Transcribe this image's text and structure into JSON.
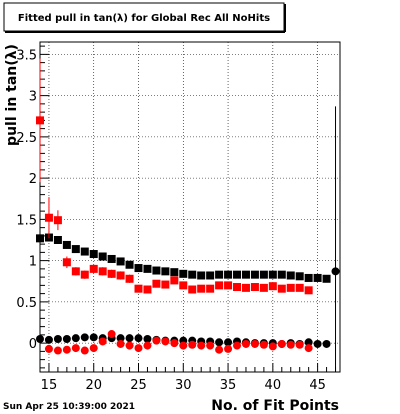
{
  "canvas": {
    "title": "Fitted pull in tan(λ) for Global Rec All NoHits",
    "timestamp": "Sun Apr 25 10:39:00 2021"
  },
  "chart_data": {
    "type": "scatter",
    "title": "Fitted pull in tan(λ) for Global Rec All NoHits",
    "xlabel": "No. of Fit Points",
    "ylabel": "pull in tan(λ)",
    "xlim": [
      14,
      47.5
    ],
    "ylim": [
      -0.35,
      3.65
    ],
    "xticks": [
      15,
      20,
      25,
      30,
      35,
      40,
      45
    ],
    "yticks": [
      0,
      0.5,
      1,
      1.5,
      2,
      2.5,
      3,
      3.5
    ],
    "xtick_labels": [
      "15",
      "20",
      "25",
      "30",
      "35",
      "40",
      "45"
    ],
    "ytick_labels": [
      "0",
      "0.5",
      "1",
      "1.5",
      "2",
      "2.5",
      "3",
      "3.5"
    ],
    "grid": true,
    "colors": {
      "black": "#000000",
      "red": "#ff0000"
    },
    "series": [
      {
        "marker": "square",
        "color": "#000000",
        "x": [
          14,
          15,
          16,
          17,
          18,
          19,
          20,
          21,
          22,
          23,
          24,
          25,
          26,
          27,
          28,
          29,
          30,
          31,
          32,
          33,
          34,
          35,
          36,
          37,
          38,
          39,
          40,
          41,
          42,
          43,
          44,
          45,
          46
        ],
        "y": [
          1.27,
          1.28,
          1.25,
          1.19,
          1.14,
          1.11,
          1.08,
          1.05,
          1.02,
          0.99,
          0.95,
          0.91,
          0.9,
          0.88,
          0.87,
          0.86,
          0.84,
          0.83,
          0.82,
          0.82,
          0.83,
          0.83,
          0.83,
          0.83,
          0.83,
          0.83,
          0.83,
          0.83,
          0.82,
          0.81,
          0.79,
          0.79,
          0.78
        ]
      },
      {
        "marker": "square",
        "color": "#ff0000",
        "x": [
          14,
          15,
          16,
          17,
          18,
          19,
          20,
          21,
          22,
          23,
          24,
          25,
          26,
          27,
          28,
          29,
          30,
          31,
          32,
          33,
          34,
          35,
          36,
          37,
          38,
          39,
          40,
          41,
          42,
          43,
          44
        ],
        "y": [
          2.7,
          1.52,
          1.49,
          0.98,
          0.87,
          0.83,
          0.9,
          0.87,
          0.84,
          0.82,
          0.78,
          0.66,
          0.65,
          0.72,
          0.71,
          0.76,
          0.7,
          0.65,
          0.66,
          0.66,
          0.7,
          0.7,
          0.68,
          0.67,
          0.68,
          0.67,
          0.69,
          0.66,
          0.67,
          0.67,
          0.64
        ],
        "yerr": [
          0.75,
          0.25,
          0.12,
          0.07,
          0.05,
          0.05,
          0.05,
          0.05,
          0.05,
          0.05,
          0.05,
          0.04,
          0.04,
          0.04,
          0.04,
          0.04,
          0.04,
          0.04,
          0.04,
          0.04,
          0.04,
          0.04,
          0.04,
          0.04,
          0.04,
          0.04,
          0.04,
          0.04,
          0.04,
          0.04,
          0.04
        ]
      },
      {
        "marker": "circle",
        "color": "#000000",
        "x": [
          14,
          15,
          16,
          17,
          18,
          19,
          20,
          21,
          22,
          23,
          24,
          25,
          26,
          27,
          28,
          29,
          30,
          31,
          32,
          33,
          34,
          35,
          36,
          37,
          38,
          39,
          40,
          41,
          42,
          43,
          44,
          45,
          46,
          47
        ],
        "y": [
          0.05,
          0.04,
          0.05,
          0.05,
          0.06,
          0.07,
          0.07,
          0.06,
          0.06,
          0.06,
          0.06,
          0.06,
          0.05,
          0.04,
          0.03,
          0.03,
          0.03,
          0.03,
          0.02,
          0.02,
          0.01,
          0.01,
          0.02,
          0.01,
          0.0,
          0.0,
          0.0,
          -0.01,
          0.0,
          -0.01,
          0.01,
          -0.01,
          -0.01,
          0.87
        ],
        "yerr": [
          0,
          0,
          0,
          0,
          0,
          0,
          0,
          0,
          0,
          0,
          0,
          0,
          0,
          0,
          0,
          0,
          0,
          0,
          0,
          0,
          0,
          0,
          0,
          0,
          0,
          0,
          0,
          0,
          0,
          0,
          0,
          0,
          0,
          2.0
        ]
      },
      {
        "marker": "circle",
        "color": "#ff0000",
        "x": [
          15,
          16,
          17,
          18,
          19,
          20,
          21,
          22,
          23,
          24,
          25,
          26,
          27,
          28,
          29,
          30,
          31,
          32,
          33,
          34,
          35,
          36,
          37,
          38,
          39,
          40,
          41,
          42,
          43,
          44
        ],
        "y": [
          -0.07,
          -0.09,
          -0.08,
          -0.06,
          -0.09,
          -0.06,
          0.02,
          0.11,
          -0.01,
          -0.03,
          -0.06,
          -0.03,
          0.03,
          0.02,
          0.0,
          -0.03,
          -0.02,
          -0.03,
          -0.03,
          -0.08,
          -0.07,
          -0.03,
          -0.01,
          -0.01,
          -0.02,
          -0.04,
          -0.01,
          -0.02,
          -0.02,
          -0.06
        ],
        "yerr": [
          0.05,
          0.04,
          0.04,
          0.03,
          0.03,
          0.03,
          0.03,
          0.03,
          0.03,
          0.03,
          0.03,
          0.03,
          0.03,
          0.03,
          0.03,
          0.03,
          0.03,
          0.03,
          0.03,
          0.03,
          0.03,
          0.03,
          0.03,
          0.03,
          0.03,
          0.03,
          0.03,
          0.03,
          0.03,
          0.03
        ]
      }
    ]
  }
}
